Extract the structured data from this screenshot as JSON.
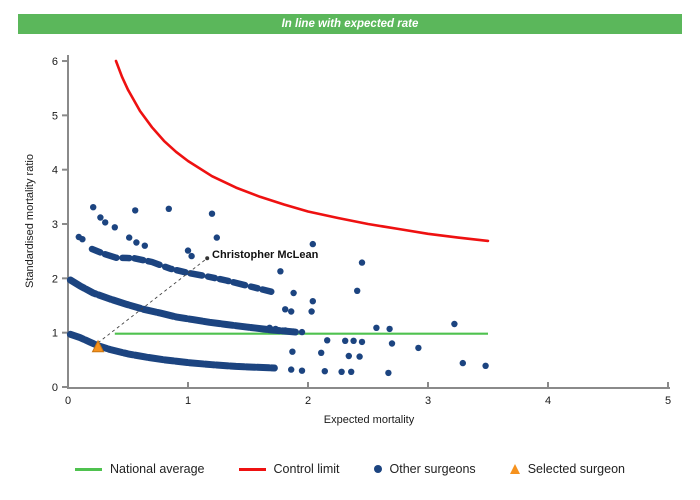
{
  "banner": {
    "text": "In line with expected rate",
    "bg_color": "#5bb75b",
    "text_color": "#ffffff"
  },
  "chart_data": {
    "type": "scatter",
    "title": "",
    "xlabel": "Expected mortality",
    "ylabel": "Standardised mortality ratio",
    "xlim": [
      0,
      5
    ],
    "ylim": [
      0,
      6
    ],
    "x_ticks": [
      0,
      1,
      2,
      3,
      4,
      5
    ],
    "y_ticks": [
      0,
      1,
      2,
      3,
      4,
      5,
      6
    ],
    "grid": "off",
    "point_color": "#1c4480",
    "axis_color": "#8a8a8a",
    "national_average": {
      "label": "National average",
      "value": 1.0,
      "x_start": 0.39,
      "x_end": 3.5,
      "color": "#4fc24f"
    },
    "control_limit": {
      "label": "Control limit",
      "color": "#ee1111",
      "points": [
        [
          0.4,
          6.0
        ],
        [
          0.45,
          5.71
        ],
        [
          0.5,
          5.47
        ],
        [
          0.6,
          5.08
        ],
        [
          0.7,
          4.78
        ],
        [
          0.8,
          4.53
        ],
        [
          0.9,
          4.33
        ],
        [
          1.0,
          4.16
        ],
        [
          1.2,
          3.88
        ],
        [
          1.4,
          3.67
        ],
        [
          1.6,
          3.5
        ],
        [
          1.8,
          3.36
        ],
        [
          2.0,
          3.23
        ],
        [
          2.25,
          3.11
        ],
        [
          2.5,
          3.0
        ],
        [
          2.75,
          2.91
        ],
        [
          3.0,
          2.82
        ],
        [
          3.25,
          2.75
        ],
        [
          3.5,
          2.69
        ]
      ]
    },
    "surgeon_bands": [
      {
        "name": "band-low",
        "width": 7,
        "dash": "14 2 9 2 12 2",
        "points": [
          [
            0.02,
            0.97
          ],
          [
            0.1,
            0.91
          ],
          [
            0.18,
            0.83
          ],
          [
            0.25,
            0.76
          ],
          [
            0.35,
            0.69
          ],
          [
            0.5,
            0.61
          ],
          [
            0.65,
            0.55
          ],
          [
            0.8,
            0.5
          ],
          [
            1.0,
            0.45
          ],
          [
            1.2,
            0.41
          ],
          [
            1.4,
            0.38
          ],
          [
            1.6,
            0.36
          ],
          [
            1.72,
            0.35
          ]
        ]
      },
      {
        "name": "band-middle",
        "width": 7,
        "dash": "16 2 11 3 13 2",
        "points": [
          [
            0.02,
            1.97
          ],
          [
            0.1,
            1.86
          ],
          [
            0.21,
            1.73
          ],
          [
            0.35,
            1.62
          ],
          [
            0.49,
            1.52
          ],
          [
            0.63,
            1.43
          ],
          [
            0.77,
            1.36
          ],
          [
            0.9,
            1.29
          ],
          [
            1.04,
            1.24
          ],
          [
            1.18,
            1.19
          ],
          [
            1.32,
            1.15
          ],
          [
            1.5,
            1.1
          ],
          [
            1.7,
            1.05
          ],
          [
            1.9,
            1.01
          ]
        ]
      },
      {
        "name": "band-upper",
        "width": 6.5,
        "dash": "9 5 12 6 7 5",
        "points": [
          [
            0.2,
            2.54
          ],
          [
            0.3,
            2.45
          ],
          [
            0.4,
            2.38
          ],
          [
            0.55,
            2.37
          ],
          [
            0.7,
            2.3
          ],
          [
            0.85,
            2.18
          ],
          [
            1.0,
            2.1
          ],
          [
            1.15,
            2.04
          ],
          [
            1.32,
            1.96
          ],
          [
            1.5,
            1.86
          ],
          [
            1.7,
            1.75
          ]
        ]
      }
    ],
    "other_surgeons": [
      [
        0.09,
        2.76
      ],
      [
        0.12,
        2.72
      ],
      [
        0.21,
        3.31
      ],
      [
        0.27,
        3.12
      ],
      [
        0.31,
        3.03
      ],
      [
        0.39,
        2.94
      ],
      [
        0.51,
        2.75
      ],
      [
        0.56,
        3.25
      ],
      [
        0.57,
        2.66
      ],
      [
        0.64,
        2.6
      ],
      [
        0.84,
        3.28
      ],
      [
        1.0,
        2.51
      ],
      [
        1.03,
        2.41
      ],
      [
        1.2,
        3.19
      ],
      [
        1.24,
        2.75
      ],
      [
        1.77,
        2.13
      ],
      [
        2.04,
        2.63
      ],
      [
        2.45,
        2.29
      ],
      [
        1.88,
        1.73
      ],
      [
        2.41,
        1.77
      ],
      [
        2.04,
        1.58
      ],
      [
        1.81,
        1.43
      ],
      [
        1.86,
        1.39
      ],
      [
        2.03,
        1.39
      ],
      [
        1.68,
        1.09
      ],
      [
        1.73,
        1.07
      ],
      [
        1.81,
        1.04
      ],
      [
        1.88,
        1.02
      ],
      [
        1.95,
        1.01
      ],
      [
        2.57,
        1.09
      ],
      [
        2.68,
        1.07
      ],
      [
        3.22,
        1.16
      ],
      [
        2.16,
        0.86
      ],
      [
        2.31,
        0.85
      ],
      [
        2.38,
        0.85
      ],
      [
        2.45,
        0.83
      ],
      [
        2.7,
        0.8
      ],
      [
        2.92,
        0.72
      ],
      [
        1.87,
        0.65
      ],
      [
        2.11,
        0.63
      ],
      [
        2.34,
        0.57
      ],
      [
        2.43,
        0.56
      ],
      [
        1.86,
        0.32
      ],
      [
        1.95,
        0.3
      ],
      [
        2.14,
        0.29
      ],
      [
        2.28,
        0.28
      ],
      [
        2.36,
        0.28
      ],
      [
        2.67,
        0.26
      ],
      [
        3.29,
        0.44
      ],
      [
        3.48,
        0.39
      ]
    ],
    "selected_surgeon": {
      "name": "Christopher McLean",
      "x": 0.25,
      "y": 0.74,
      "color": "#f6921e",
      "callout_x": 1.16,
      "callout_y": 2.37
    }
  },
  "legend": {
    "items": [
      {
        "label": "National average",
        "swatch": "green-line",
        "color": "#4fc24f"
      },
      {
        "label": "Control limit",
        "swatch": "red-line",
        "color": "#ee1111"
      },
      {
        "label": "Other surgeons",
        "swatch": "blue-dot",
        "color": "#1c4480"
      },
      {
        "label": "Selected surgeon",
        "swatch": "orange-triangle",
        "color": "#f6921e"
      }
    ]
  }
}
